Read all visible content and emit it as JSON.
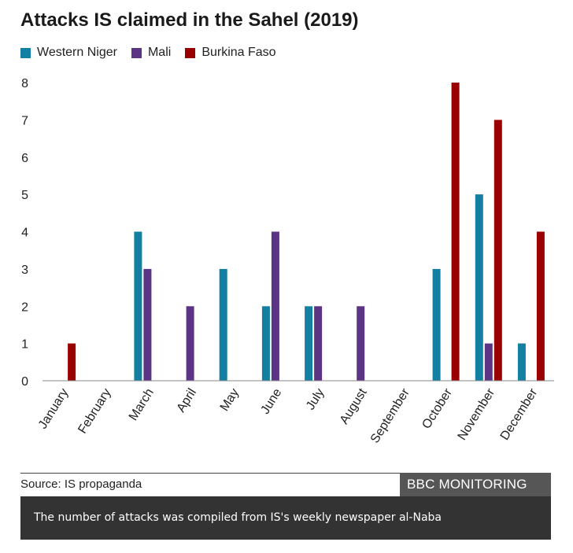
{
  "chart_data": {
    "type": "bar",
    "title": "Attacks IS claimed in the Sahel (2019)",
    "categories": [
      "January",
      "February",
      "March",
      "April",
      "May",
      "June",
      "July",
      "August",
      "September",
      "October",
      "November",
      "December"
    ],
    "series": [
      {
        "name": "Western Niger",
        "color": "#1380A1",
        "values": [
          0,
          0,
          4,
          0,
          3,
          2,
          2,
          0,
          0,
          3,
          5,
          1
        ]
      },
      {
        "name": "Mali",
        "color": "#5B3486",
        "values": [
          0,
          0,
          3,
          2,
          0,
          4,
          2,
          2,
          0,
          0,
          1,
          0
        ]
      },
      {
        "name": "Burkina Faso",
        "color": "#990000",
        "values": [
          1,
          0,
          0,
          0,
          0,
          0,
          0,
          0,
          0,
          8,
          7,
          4
        ]
      }
    ],
    "yticks": [
      0,
      1,
      2,
      3,
      4,
      5,
      6,
      7,
      8
    ],
    "ylim": [
      0,
      8
    ],
    "xlabel": "",
    "ylabel": "",
    "grid": false,
    "legend": "top-left"
  },
  "footer": {
    "source": "Source: IS propaganda",
    "badge": "BBC MONITORING",
    "caption": "The number of attacks was compiled from IS's weekly newspaper al-Naba"
  }
}
